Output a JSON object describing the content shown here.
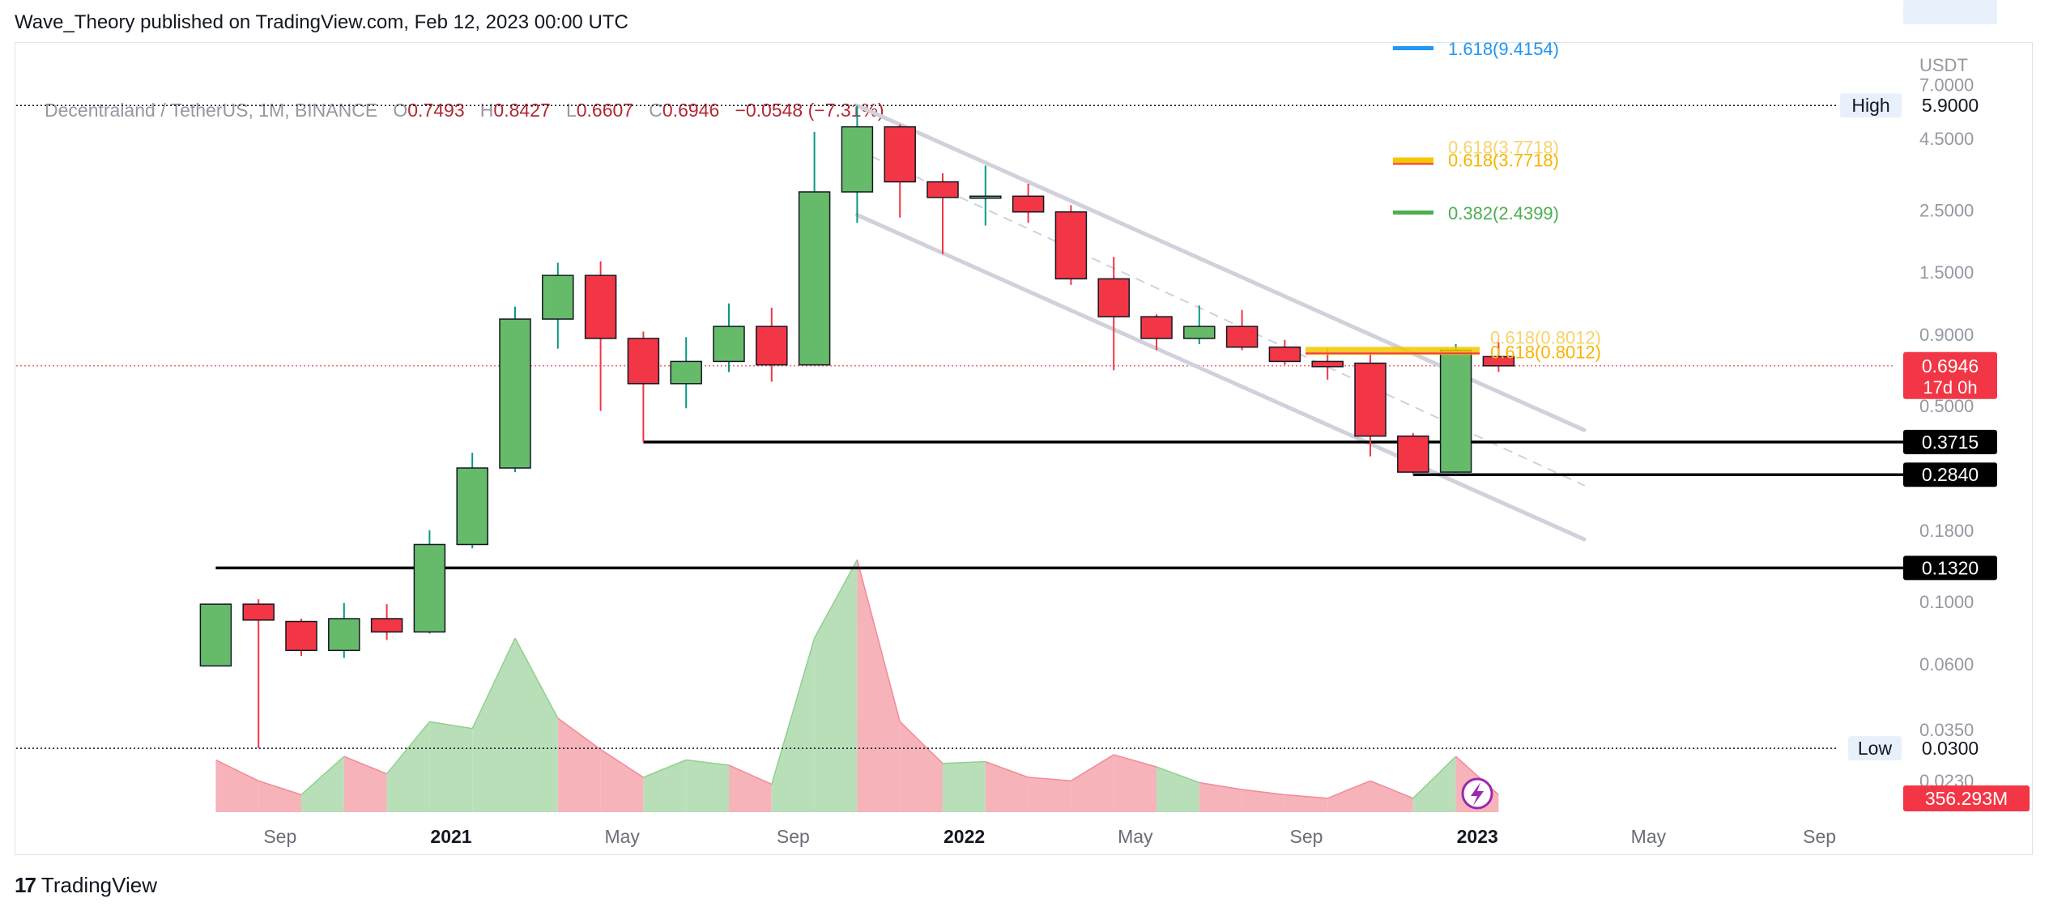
{
  "caption": "Wave_Theory published on TradingView.com, Feb 12, 2023 00:00 UTC",
  "footer": {
    "brand_mark": "17",
    "brand_name": "TradingView"
  },
  "legend": {
    "symbol": "Decentraland / TetherUS, 1M, BINANCE",
    "o_label": "O",
    "o": "0.7493",
    "h_label": "H",
    "h": "0.8427",
    "l_label": "L",
    "l": "0.6607",
    "c_label": "C",
    "c": "0.6946",
    "change": "−0.0548 (−7.31%)"
  },
  "colors": {
    "up": "#66bb6a",
    "down": "#f23645",
    "up_wick": "#089981",
    "down_wick": "#f23645",
    "volume_up": "#b9dfb9",
    "volume_down": "#f7b3ba",
    "channel": "#d1d1dc",
    "fib_blue": "#2196f3",
    "fib_yellow": "#f7c600",
    "fib_green": "#4caf50"
  },
  "chart_data": {
    "type": "candlestick",
    "scale": "log",
    "axis_unit": "USDT",
    "y_ticks": [
      "7.0000",
      "4.5000",
      "2.5000",
      "1.5000",
      "0.9000",
      "0.5000",
      "0.1800",
      "0.1000",
      "0.0600",
      "0.0350",
      "0.0230"
    ],
    "x_ticks": [
      {
        "label": "Sep",
        "index": 1,
        "bold": false
      },
      {
        "label": "2021",
        "index": 5,
        "bold": true
      },
      {
        "label": "May",
        "index": 9,
        "bold": false
      },
      {
        "label": "Sep",
        "index": 13,
        "bold": false
      },
      {
        "label": "2022",
        "index": 17,
        "bold": true
      },
      {
        "label": "May",
        "index": 21,
        "bold": false
      },
      {
        "label": "Sep",
        "index": 25,
        "bold": false
      },
      {
        "label": "2023",
        "index": 29,
        "bold": true
      },
      {
        "label": "May",
        "index": 33,
        "bold": false
      },
      {
        "label": "Sep",
        "index": 37,
        "bold": false
      }
    ],
    "candles": [
      {
        "month": "2020-08",
        "o": 0.059,
        "h": 0.098,
        "l": 0.059,
        "c": 0.098
      },
      {
        "month": "2020-09",
        "o": 0.098,
        "h": 0.102,
        "l": 0.03,
        "c": 0.086
      },
      {
        "month": "2020-10",
        "o": 0.085,
        "h": 0.087,
        "l": 0.064,
        "c": 0.067
      },
      {
        "month": "2020-11",
        "o": 0.067,
        "h": 0.099,
        "l": 0.063,
        "c": 0.087
      },
      {
        "month": "2020-12",
        "o": 0.087,
        "h": 0.098,
        "l": 0.073,
        "c": 0.078
      },
      {
        "month": "2021-01",
        "o": 0.078,
        "h": 0.18,
        "l": 0.077,
        "c": 0.16
      },
      {
        "month": "2021-02",
        "o": 0.16,
        "h": 0.34,
        "l": 0.155,
        "c": 0.3
      },
      {
        "month": "2021-03",
        "o": 0.3,
        "h": 1.13,
        "l": 0.29,
        "c": 1.02
      },
      {
        "month": "2021-04",
        "o": 1.02,
        "h": 1.62,
        "l": 0.8,
        "c": 1.46
      },
      {
        "month": "2021-05",
        "o": 1.46,
        "h": 1.64,
        "l": 0.48,
        "c": 0.87
      },
      {
        "month": "2021-06",
        "o": 0.87,
        "h": 0.92,
        "l": 0.372,
        "c": 0.6
      },
      {
        "month": "2021-07",
        "o": 0.6,
        "h": 0.88,
        "l": 0.49,
        "c": 0.72
      },
      {
        "month": "2021-08",
        "o": 0.72,
        "h": 1.16,
        "l": 0.66,
        "c": 0.96
      },
      {
        "month": "2021-09",
        "o": 0.96,
        "h": 1.12,
        "l": 0.61,
        "c": 0.7
      },
      {
        "month": "2021-10",
        "o": 0.7,
        "h": 4.75,
        "l": 0.7,
        "c": 2.9
      },
      {
        "month": "2021-11",
        "o": 2.9,
        "h": 5.9,
        "l": 2.25,
        "c": 4.95
      },
      {
        "month": "2021-12",
        "o": 4.95,
        "h": 5.05,
        "l": 2.35,
        "c": 3.15
      },
      {
        "month": "2022-01",
        "o": 3.15,
        "h": 3.38,
        "l": 1.74,
        "c": 2.77
      },
      {
        "month": "2022-02",
        "o": 2.77,
        "h": 3.6,
        "l": 2.2,
        "c": 2.8
      },
      {
        "month": "2022-03",
        "o": 2.8,
        "h": 3.1,
        "l": 2.25,
        "c": 2.46
      },
      {
        "month": "2022-04",
        "o": 2.46,
        "h": 2.6,
        "l": 1.35,
        "c": 1.42
      },
      {
        "month": "2022-05",
        "o": 1.42,
        "h": 1.7,
        "l": 0.67,
        "c": 1.04
      },
      {
        "month": "2022-06",
        "o": 1.04,
        "h": 1.06,
        "l": 0.79,
        "c": 0.87
      },
      {
        "month": "2022-07",
        "o": 0.87,
        "h": 1.14,
        "l": 0.83,
        "c": 0.96
      },
      {
        "month": "2022-08",
        "o": 0.96,
        "h": 1.1,
        "l": 0.79,
        "c": 0.81
      },
      {
        "month": "2022-09",
        "o": 0.81,
        "h": 0.86,
        "l": 0.7,
        "c": 0.72
      },
      {
        "month": "2022-10",
        "o": 0.72,
        "h": 0.8,
        "l": 0.62,
        "c": 0.69
      },
      {
        "month": "2022-11",
        "o": 0.71,
        "h": 0.78,
        "l": 0.33,
        "c": 0.39
      },
      {
        "month": "2022-12",
        "o": 0.39,
        "h": 0.4,
        "l": 0.284,
        "c": 0.29
      },
      {
        "month": "2023-01",
        "o": 0.29,
        "h": 0.83,
        "l": 0.285,
        "c": 0.79
      },
      {
        "month": "2023-02",
        "o": 0.7493,
        "h": 0.8427,
        "l": 0.6607,
        "c": 0.6946
      }
    ],
    "volume_levels": [
      0.3,
      0.18,
      0.1,
      0.32,
      0.22,
      0.52,
      0.48,
      1.0,
      0.54,
      0.36,
      0.2,
      0.3,
      0.27,
      0.16,
      1.0,
      1.45,
      0.52,
      0.28,
      0.29,
      0.2,
      0.18,
      0.33,
      0.26,
      0.17,
      0.13,
      0.1,
      0.08,
      0.18,
      0.08,
      0.32,
      0.1
    ],
    "volume_last_label": "356.293M",
    "high_line": {
      "label": "High",
      "value": "5.9000",
      "price": 5.9
    },
    "low_line": {
      "label": "Low",
      "value": "0.0300",
      "price": 0.03
    },
    "current_price": {
      "value": "0.6946",
      "price": 0.6946,
      "countdown": "17d 0h"
    },
    "support_lines": [
      {
        "value": "0.3715",
        "price": 0.3715,
        "from_index": 10
      },
      {
        "value": "0.2840",
        "price": 0.284,
        "from_index": 28
      },
      {
        "value": "0.1320",
        "price": 0.132,
        "from_index": 0
      }
    ],
    "fib_levels": [
      {
        "label": "1.618(9.4154)",
        "price": 9.4154,
        "color": "#2196f3"
      },
      {
        "label": "0.618(3.7718)",
        "price": 3.7718,
        "color": "#f7c600",
        "overlap": "0.618(3.7718)"
      },
      {
        "label": "0.382(2.4399)",
        "price": 2.4399,
        "color": "#4caf50"
      },
      {
        "label": "0.618(0.8012)",
        "price": 0.8012,
        "color": "#f7c600",
        "overlap": "0.618(0.8012)"
      }
    ],
    "channel": [
      {
        "from": {
          "index": 15,
          "price": 5.9
        },
        "to": {
          "index": 32,
          "price": 0.41
        }
      },
      {
        "from": {
          "index": 15,
          "price": 2.4
        },
        "to": {
          "index": 32,
          "price": 0.167
        }
      },
      {
        "from": {
          "index": 15,
          "price": 4.1
        },
        "to": {
          "index": 32,
          "price": 0.26
        },
        "dashed": true
      }
    ]
  }
}
